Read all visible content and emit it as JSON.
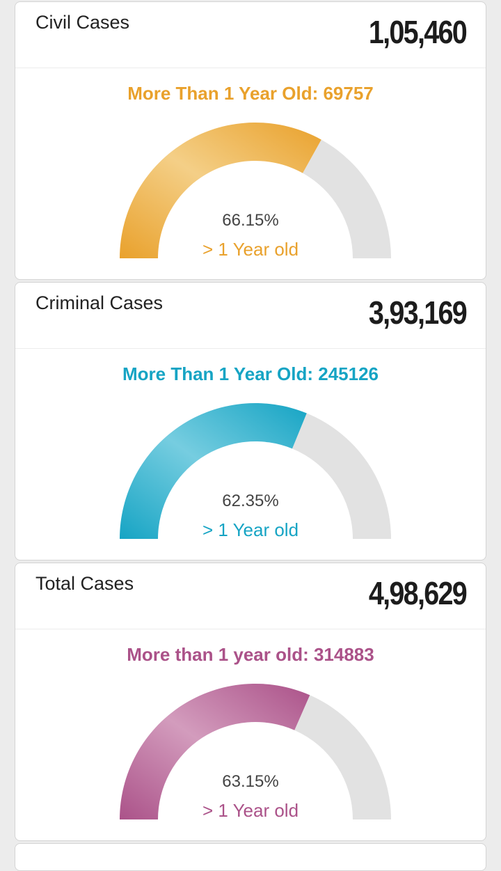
{
  "cards": [
    {
      "title": "Civil Cases",
      "count": "1,05,460",
      "subtitle": "More Than 1 Year Old: 69757",
      "percent_text": "66.15%",
      "age_label": "> 1 Year old",
      "fraction": 0.6615,
      "color": "#e9a12c",
      "color_light": "#f4cf87"
    },
    {
      "title": "Criminal Cases",
      "count": "3,93,169",
      "subtitle": "More Than 1 Year Old: 245126",
      "percent_text": "62.35%",
      "age_label": "> 1 Year old",
      "fraction": 0.6235,
      "color": "#16a4c4",
      "color_light": "#76cde0"
    },
    {
      "title": "Total Cases",
      "count": "4,98,629",
      "subtitle": "More than 1 year old: 314883",
      "percent_text": "63.15%",
      "age_label": "> 1 Year old",
      "fraction": 0.6315,
      "color": "#ab5289",
      "color_light": "#d39cbd"
    }
  ],
  "gauge_track_color": "#e2e2e2"
}
